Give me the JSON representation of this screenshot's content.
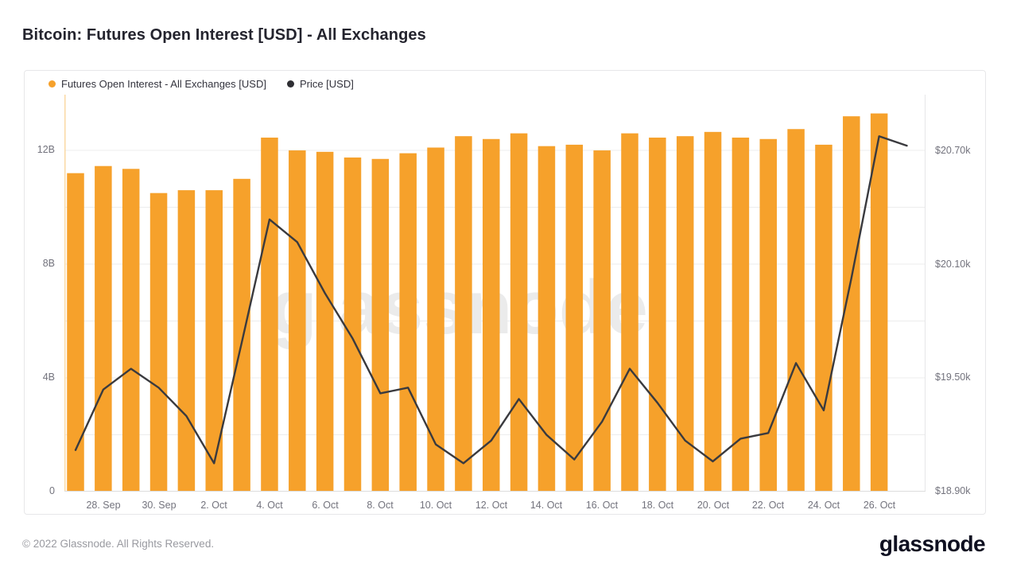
{
  "page": {
    "title": "Bitcoin: Futures Open Interest [USD] - All Exchanges",
    "footer": "© 2022 Glassnode. All Rights Reserved.",
    "brand": "glassnode"
  },
  "watermark": "glassnode",
  "legend": [
    {
      "label": "Futures Open Interest - All Exchanges [USD]",
      "color": "#F6A12B"
    },
    {
      "label": "Price [USD]",
      "color": "#2e2e33"
    }
  ],
  "colors": {
    "bar": "#F6A12B",
    "line": "#3a3a3e",
    "grid": "#ededed",
    "axis_baseline": "#dcdcdc",
    "left_axis_line": "#fbd9a4",
    "right_axis_line": "#e6e6e8",
    "tick": "#dcdcdc",
    "watermark": "#ebebeb"
  },
  "chart_data": {
    "type": "bar+line",
    "title": "Bitcoin: Futures Open Interest [USD] - All Exchanges",
    "categories": [
      "27 Sep",
      "28 Sep",
      "29 Sep",
      "30 Sep",
      "1 Oct",
      "2 Oct",
      "3 Oct",
      "4 Oct",
      "5 Oct",
      "6 Oct",
      "7 Oct",
      "8 Oct",
      "9 Oct",
      "10 Oct",
      "11 Oct",
      "12 Oct",
      "13 Oct",
      "14 Oct",
      "15 Oct",
      "16 Oct",
      "17 Oct",
      "18 Oct",
      "19 Oct",
      "20 Oct",
      "21 Oct",
      "22 Oct",
      "23 Oct",
      "24 Oct",
      "25 Oct",
      "26 Oct",
      "27 Oct"
    ],
    "series": [
      {
        "name": "Futures Open Interest - All Exchanges [USD]",
        "type": "bar",
        "unit": "billion USD",
        "color": "#F6A12B",
        "values": [
          11.2,
          11.45,
          11.35,
          10.5,
          10.6,
          10.6,
          11.0,
          12.45,
          12.0,
          11.95,
          11.75,
          11.7,
          11.9,
          12.1,
          12.5,
          12.4,
          12.6,
          12.15,
          12.2,
          12.0,
          12.6,
          12.45,
          12.5,
          12.65,
          12.45,
          12.4,
          12.75,
          12.2,
          13.2,
          13.3,
          null
        ]
      },
      {
        "name": "Price [USD]",
        "type": "line",
        "unit": "thousand USD",
        "color": "#3a3a3e",
        "values": [
          19.12,
          19.44,
          19.55,
          19.45,
          19.3,
          19.05,
          19.69,
          20.34,
          20.22,
          19.95,
          19.71,
          19.42,
          19.45,
          19.15,
          19.05,
          19.17,
          19.39,
          19.2,
          19.07,
          19.27,
          19.55,
          19.37,
          19.17,
          19.06,
          19.18,
          19.21,
          19.58,
          19.33,
          20.03,
          20.78,
          20.73
        ]
      }
    ],
    "x_tick_labels": [
      "28. Sep",
      "30. Sep",
      "2. Oct",
      "4. Oct",
      "6. Oct",
      "8. Oct",
      "10. Oct",
      "12. Oct",
      "14. Oct",
      "16. Oct",
      "18. Oct",
      "20. Oct",
      "22. Oct",
      "24. Oct",
      "26. Oct"
    ],
    "x_labeled_indices": [
      1,
      3,
      5,
      7,
      9,
      11,
      13,
      15,
      17,
      19,
      21,
      23,
      25,
      27,
      29
    ],
    "y_left": {
      "axis_for": "open interest",
      "tick_labels": [
        "0",
        "4B",
        "8B",
        "12B"
      ],
      "tick_values": [
        0,
        4,
        8,
        12
      ],
      "min": 0,
      "max": 13.96,
      "gridline_step": 2
    },
    "y_right": {
      "axis_for": "price",
      "tick_labels": [
        "$18.90k",
        "$19.50k",
        "$20.10k",
        "$20.70k"
      ],
      "tick_values": [
        18.9,
        19.5,
        20.1,
        20.7
      ],
      "min": 18.9,
      "max": 21.0,
      "gridline_step": 0.3
    },
    "grid": true,
    "legend_position": "top-left"
  }
}
